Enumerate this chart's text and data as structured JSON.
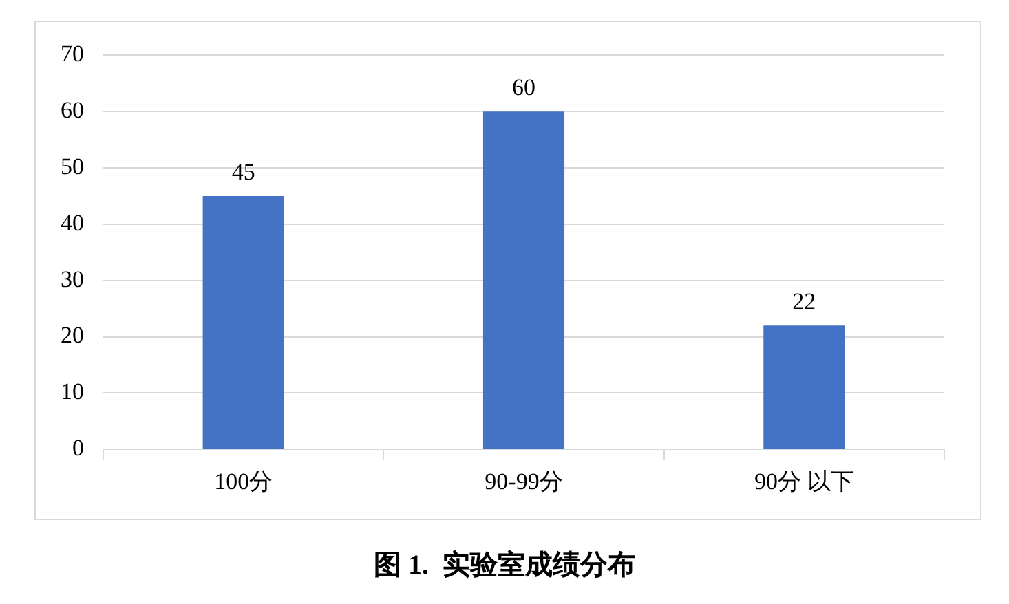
{
  "chart_data": {
    "type": "bar",
    "title": "图 1.  实验室成绩分布",
    "categories": [
      "100分",
      "90-99分",
      "90分 以下"
    ],
    "values": [
      45,
      60,
      22
    ],
    "color": "#4472c4",
    "ylim": [
      0,
      70
    ],
    "yticks": [
      0,
      10,
      20,
      30,
      40,
      50,
      60,
      70
    ],
    "grid": "y",
    "data_labels": true,
    "legend": false
  }
}
